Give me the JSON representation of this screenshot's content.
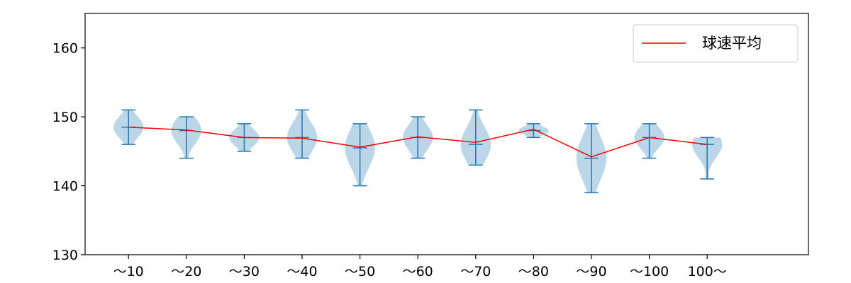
{
  "chart_data": {
    "type": "violin",
    "categories": [
      "〜10",
      "〜20",
      "〜30",
      "〜40",
      "〜50",
      "〜60",
      "〜70",
      "〜80",
      "〜90",
      "〜100",
      "100〜"
    ],
    "distributions": [
      {
        "min": 146,
        "max": 151,
        "median": 148.5
      },
      {
        "min": 144,
        "max": 150,
        "median": 148
      },
      {
        "min": 145,
        "max": 149,
        "median": 147
      },
      {
        "min": 144,
        "max": 151,
        "median": 147
      },
      {
        "min": 140,
        "max": 149,
        "median": 145.5
      },
      {
        "min": 144,
        "max": 150,
        "median": 147
      },
      {
        "min": 143,
        "max": 151,
        "median": 146
      },
      {
        "min": 147,
        "max": 149,
        "median": 148
      },
      {
        "min": 139,
        "max": 149,
        "median": 144
      },
      {
        "min": 144,
        "max": 149,
        "median": 147
      },
      {
        "min": 141,
        "max": 147,
        "median": 146
      }
    ],
    "series": [
      {
        "name": "球速平均",
        "type": "line",
        "values": [
          148.5,
          148.1,
          147.0,
          146.9,
          145.6,
          147.1,
          146.3,
          148.2,
          144.2,
          147.0,
          146.0
        ]
      }
    ],
    "yticks": [
      130,
      140,
      150,
      160
    ],
    "ylim": [
      130,
      165
    ],
    "grid": false,
    "legend": "top-right",
    "colors": {
      "violin_fill": "#1f77b4",
      "violin_line": "#1f77b4",
      "average_line": "#ff0000"
    }
  }
}
